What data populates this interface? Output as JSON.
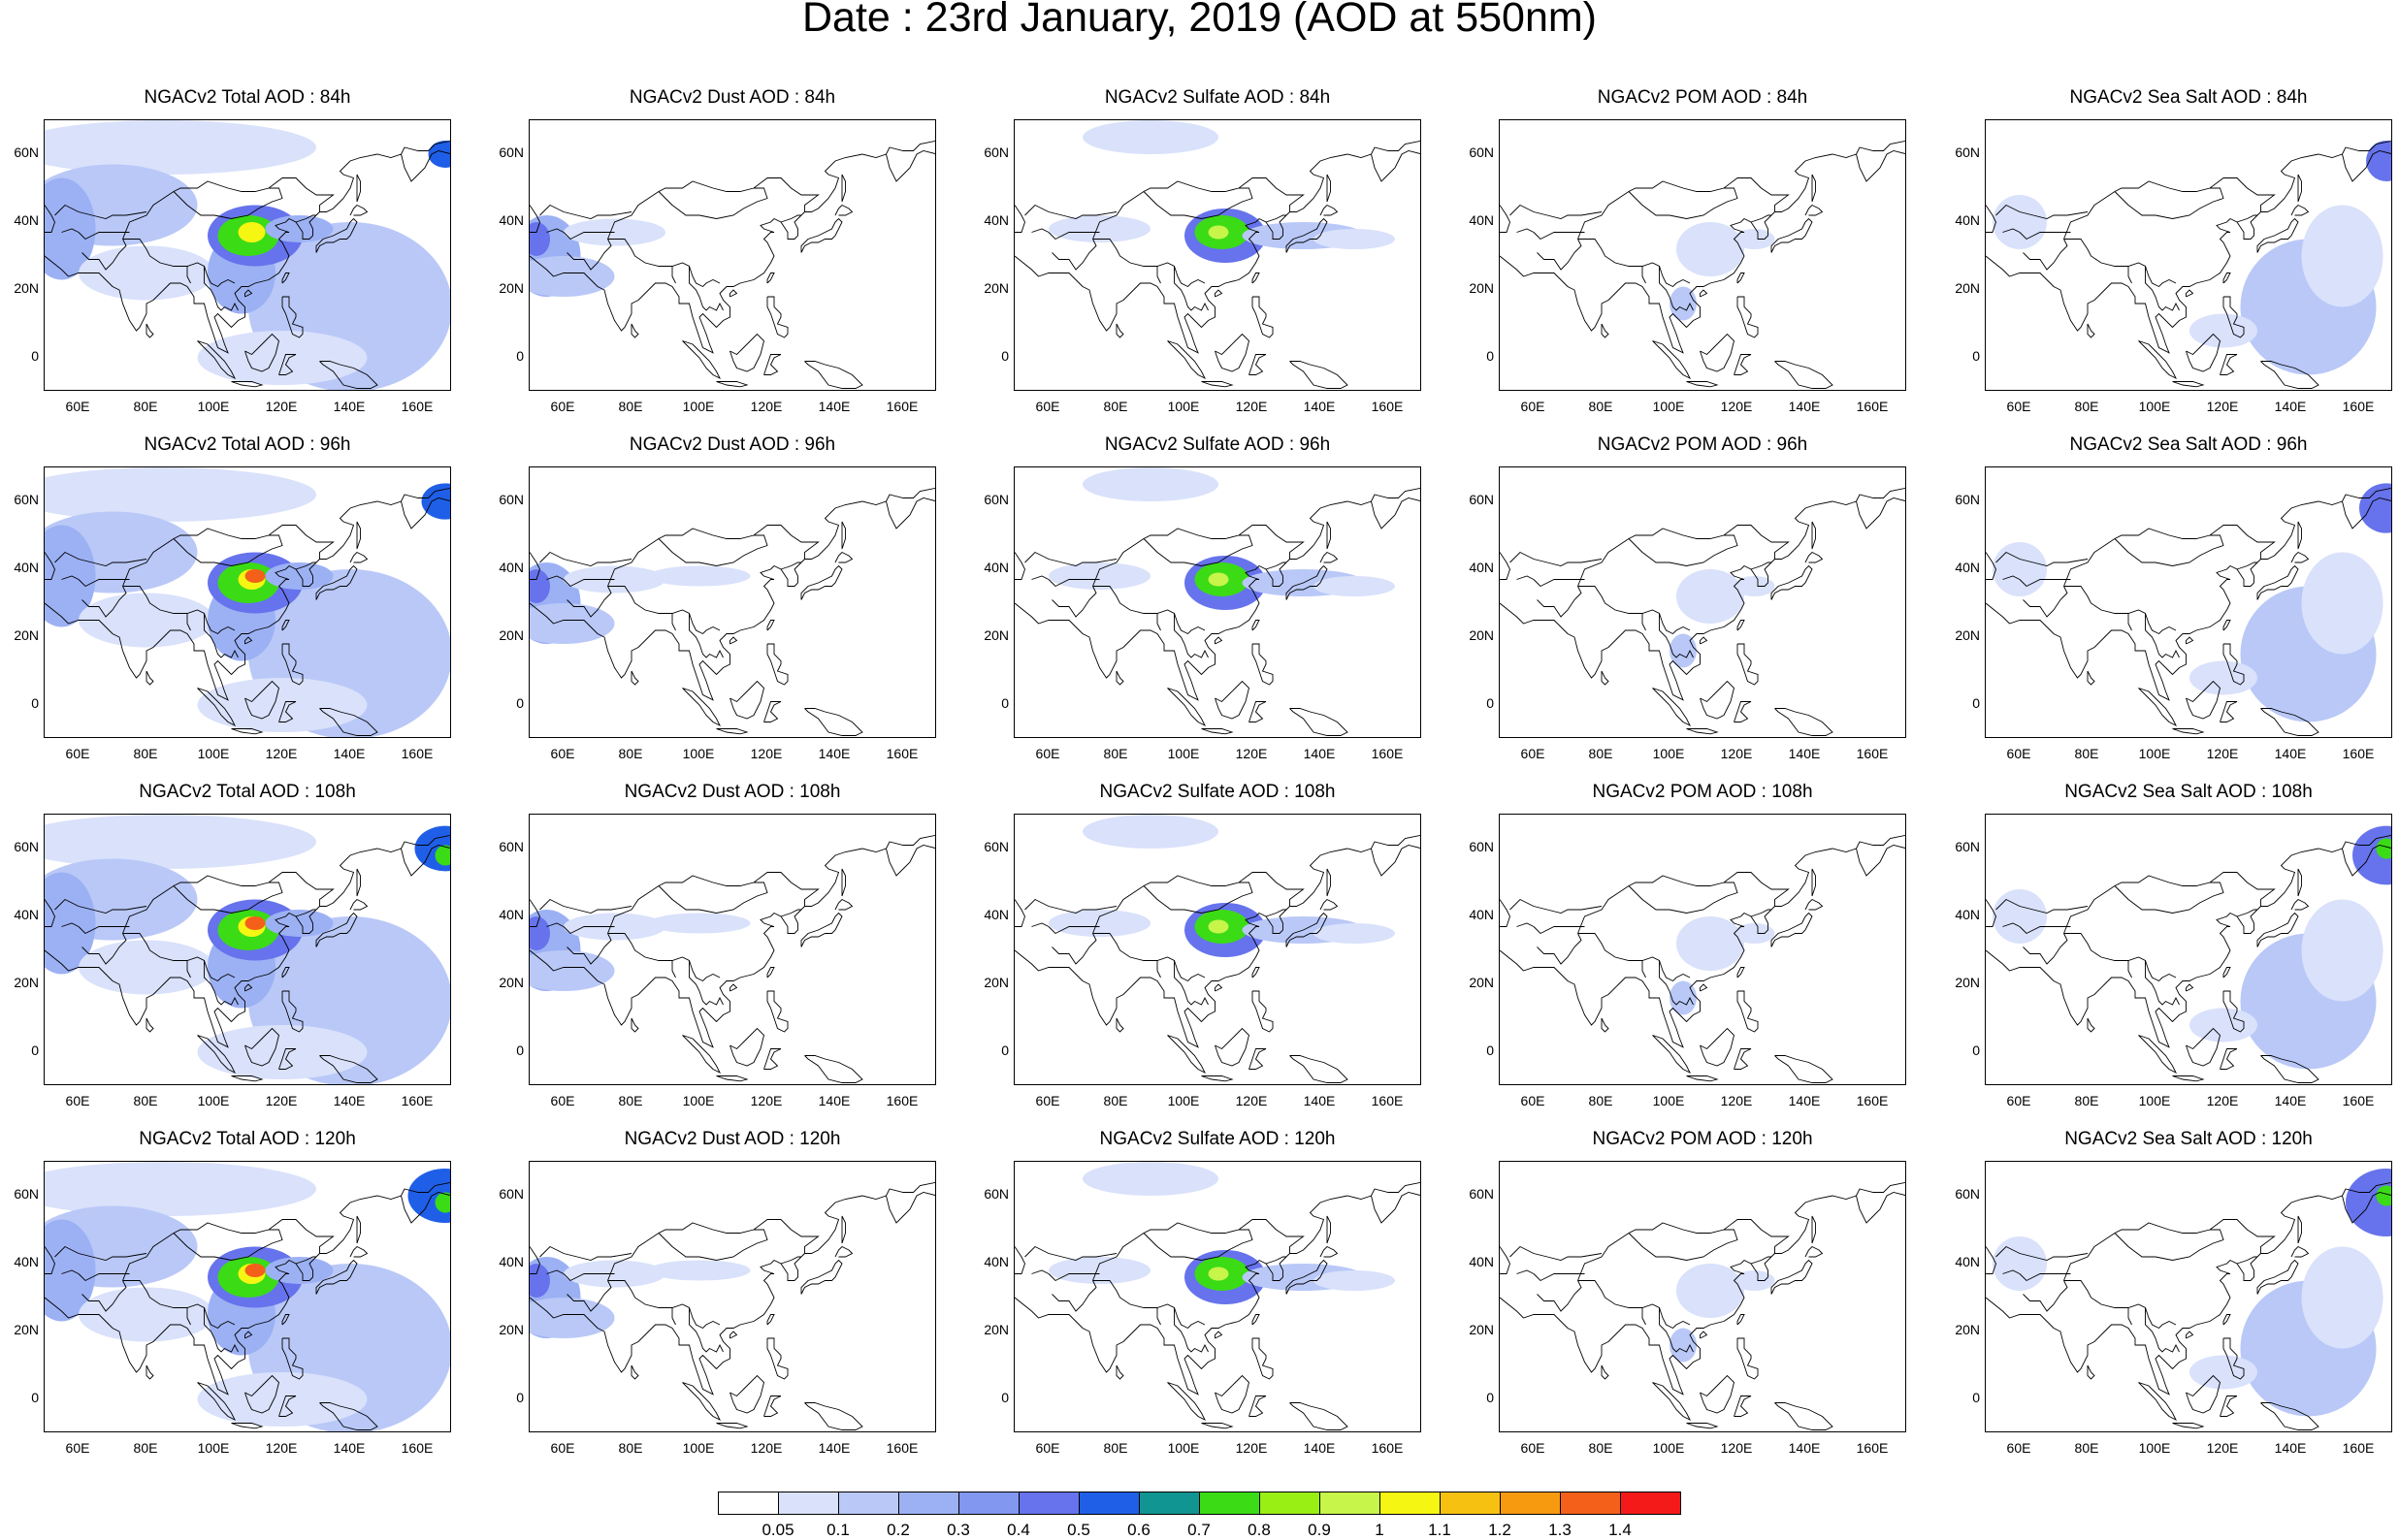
{
  "title": "Date : 23rd January, 2019 (AOD at 550nm)",
  "lat_labels": [
    "60N",
    "40N",
    "20N",
    "0"
  ],
  "lon_labels": [
    "60E",
    "80E",
    "100E",
    "120E",
    "140E",
    "160E"
  ],
  "panels": [
    {
      "title": "NGACv2 Total AOD : 84h",
      "species": "total",
      "hour": 84
    },
    {
      "title": "NGACv2 Dust AOD : 84h",
      "species": "dust",
      "hour": 84
    },
    {
      "title": "NGACv2 Sulfate AOD : 84h",
      "species": "sulfate",
      "hour": 84
    },
    {
      "title": "NGACv2 POM AOD : 84h",
      "species": "pom",
      "hour": 84
    },
    {
      "title": "NGACv2 Sea Salt AOD : 84h",
      "species": "seasalt",
      "hour": 84
    },
    {
      "title": "NGACv2 Total AOD : 96h",
      "species": "total",
      "hour": 96
    },
    {
      "title": "NGACv2 Dust AOD : 96h",
      "species": "dust",
      "hour": 96
    },
    {
      "title": "NGACv2 Sulfate AOD : 96h",
      "species": "sulfate",
      "hour": 96
    },
    {
      "title": "NGACv2 POM AOD : 96h",
      "species": "pom",
      "hour": 96
    },
    {
      "title": "NGACv2 Sea Salt AOD : 96h",
      "species": "seasalt",
      "hour": 96
    },
    {
      "title": "NGACv2 Total AOD : 108h",
      "species": "total",
      "hour": 108
    },
    {
      "title": "NGACv2 Dust AOD : 108h",
      "species": "dust",
      "hour": 108
    },
    {
      "title": "NGACv2 Sulfate AOD : 108h",
      "species": "sulfate",
      "hour": 108
    },
    {
      "title": "NGACv2 POM AOD : 108h",
      "species": "pom",
      "hour": 108
    },
    {
      "title": "NGACv2 Sea Salt AOD : 108h",
      "species": "seasalt",
      "hour": 108
    },
    {
      "title": "NGACv2 Total AOD : 120h",
      "species": "total",
      "hour": 120
    },
    {
      "title": "NGACv2 Dust AOD : 120h",
      "species": "dust",
      "hour": 120
    },
    {
      "title": "NGACv2 Sulfate AOD : 120h",
      "species": "sulfate",
      "hour": 120
    },
    {
      "title": "NGACv2 POM AOD : 120h",
      "species": "pom",
      "hour": 120
    },
    {
      "title": "NGACv2 Sea Salt  AOD : 120h",
      "species": "seasalt",
      "hour": 120
    }
  ],
  "colorbar": {
    "labels": [
      "0.05",
      "0.1",
      "0.2",
      "0.3",
      "0.4",
      "0.5",
      "0.6",
      "0.7",
      "0.8",
      "0.9",
      "1",
      "1.1",
      "1.2",
      "1.3",
      "1.4"
    ],
    "colors": [
      "#ffffff",
      "#d9e1fb",
      "#b9c8f7",
      "#9cb1f4",
      "#8197f0",
      "#6673ec",
      "#1f5fe8",
      "#109592",
      "#3bdb16",
      "#99ee14",
      "#c7f54a",
      "#f6f613",
      "#f7c111",
      "#f79a10",
      "#f4601a",
      "#f41a1a"
    ]
  }
}
